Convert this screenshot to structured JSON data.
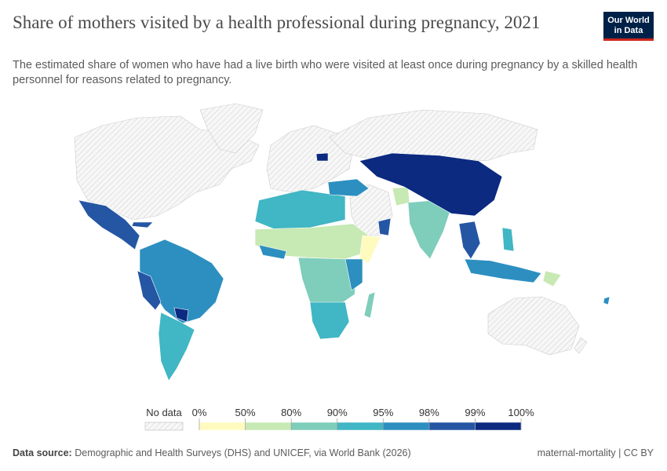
{
  "header": {
    "title": "Share of mothers visited by a health professional during pregnancy, 2021",
    "subtitle": "The estimated share of women who have had a live birth who were visited at least once during pregnancy by a skilled health personnel for reasons related to pregnancy.",
    "logo": [
      "Our World",
      "in Data"
    ]
  },
  "legend": {
    "no_data": "No data",
    "ticks": [
      "0%",
      "50%",
      "80%",
      "90%",
      "95%",
      "98%",
      "99%",
      "100%"
    ],
    "colors": [
      "#fffbbf",
      "#c7e9b4",
      "#7fcdbb",
      "#41b6c4",
      "#2c8fc0",
      "#2456a4",
      "#0b2a80"
    ]
  },
  "footer": {
    "source_label": "Data source:",
    "source": "Demographic and Health Surveys (DHS) and UNICEF, via World Bank (2026)",
    "credit": "maternal-mortality | CC BY"
  }
}
